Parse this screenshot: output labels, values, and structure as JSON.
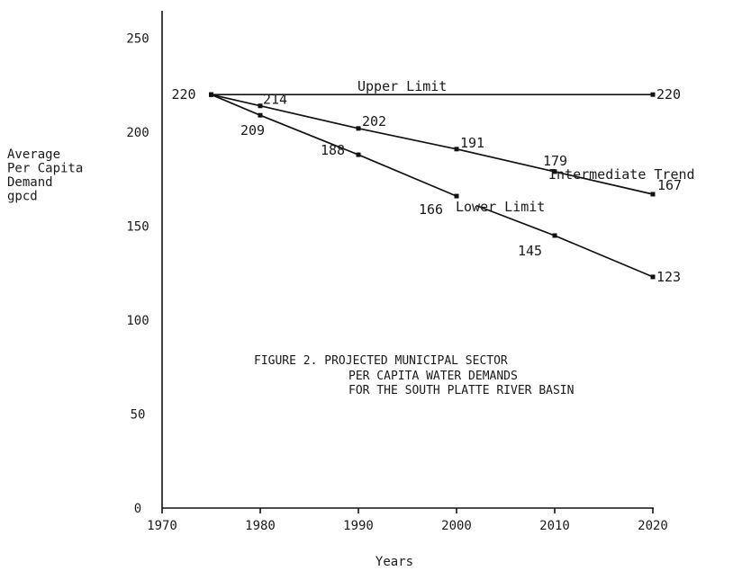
{
  "chart_data": {
    "type": "line",
    "caption": [
      "FIGURE 2.  PROJECTED MUNICIPAL SECTOR",
      "PER CAPITA WATER DEMANDS",
      "FOR THE SOUTH PLATTE RIVER BASIN"
    ],
    "xlabel": "Years",
    "ylabel": [
      "Average",
      "Per Capita",
      "Demand",
      "gpcd"
    ],
    "xlim": [
      1970,
      2025
    ],
    "ylim": [
      0,
      260
    ],
    "x_ticks": [
      1970,
      1980,
      1990,
      2000,
      2010,
      2020
    ],
    "y_ticks": [
      0,
      50,
      100,
      150,
      200,
      250
    ],
    "grid": false,
    "series": [
      {
        "name": "Upper Limit",
        "segments": [
          [
            {
              "x": 1975,
              "y": 220
            },
            {
              "x": 2020,
              "y": 220
            }
          ]
        ],
        "labels": [
          {
            "x": 1975,
            "y": 220,
            "text": "220"
          },
          {
            "x": 2020,
            "y": 220,
            "text": "220"
          }
        ]
      },
      {
        "name": "Intermediate Trend",
        "segments": [
          [
            {
              "x": 1975,
              "y": 220
            },
            {
              "x": 1980,
              "y": 214
            },
            {
              "x": 1990,
              "y": 202
            },
            {
              "x": 2000,
              "y": 191
            },
            {
              "x": 2010,
              "y": 179
            },
            {
              "x": 2020,
              "y": 167
            }
          ]
        ],
        "labels": [
          {
            "x": 1980,
            "y": 214,
            "text": "214"
          },
          {
            "x": 1990,
            "y": 202,
            "text": "202"
          },
          {
            "x": 2000,
            "y": 191,
            "text": "191"
          },
          {
            "x": 2010,
            "y": 179,
            "text": "179"
          },
          {
            "x": 2020,
            "y": 167,
            "text": "167"
          }
        ]
      },
      {
        "name": "Lower Limit",
        "segments": [
          [
            {
              "x": 1975,
              "y": 220
            },
            {
              "x": 1980,
              "y": 209
            },
            {
              "x": 1990,
              "y": 188
            },
            {
              "x": 2000,
              "y": 166
            }
          ],
          [
            {
              "x": 2002,
              "y": 161
            },
            {
              "x": 2010,
              "y": 145
            },
            {
              "x": 2020,
              "y": 123
            }
          ]
        ],
        "labels": [
          {
            "x": 1980,
            "y": 209,
            "text": "209"
          },
          {
            "x": 1990,
            "y": 188,
            "text": "188"
          },
          {
            "x": 2000,
            "y": 166,
            "text": "166"
          },
          {
            "x": 2010,
            "y": 145,
            "text": "145"
          },
          {
            "x": 2020,
            "y": 123,
            "text": "123"
          }
        ]
      }
    ]
  }
}
